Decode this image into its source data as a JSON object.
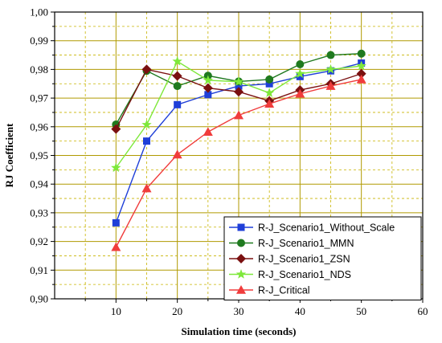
{
  "chart_data": {
    "type": "line",
    "title": "",
    "xlabel": "Simulation time (seconds)",
    "ylabel": "RJ Coefficient",
    "xlim": [
      0,
      60
    ],
    "ylim": [
      0.9,
      1.0
    ],
    "x_ticks": [
      10,
      20,
      30,
      40,
      50,
      60
    ],
    "x_tick_labels": [
      "10",
      "20",
      "30",
      "40",
      "50",
      "60"
    ],
    "y_ticks": [
      0.9,
      0.91,
      0.92,
      0.93,
      0.94,
      0.95,
      0.96,
      0.97,
      0.98,
      0.99,
      1.0
    ],
    "y_tick_labels": [
      "0,90",
      "0,91",
      "0,92",
      "0,93",
      "0,94",
      "0,95",
      "0,96",
      "0,97",
      "0,98",
      "0,99",
      "1,00"
    ],
    "grid": true,
    "legend_position": "bottom-right",
    "x": [
      10,
      15,
      20,
      25,
      30,
      35,
      40,
      45,
      50
    ],
    "series": [
      {
        "name": "R-J_Scenario1_Without_Scale",
        "color": "#1f3fd8",
        "marker": "square",
        "values": [
          0.9265,
          0.955,
          0.9677,
          0.9712,
          0.9742,
          0.975,
          0.9775,
          0.9795,
          0.9822
        ]
      },
      {
        "name": "R-J_Scenario1_MMN",
        "color": "#1f7a1f",
        "marker": "circle",
        "values": [
          0.9608,
          0.9795,
          0.9742,
          0.9778,
          0.9758,
          0.9765,
          0.9818,
          0.985,
          0.9855
        ]
      },
      {
        "name": "R-J_Scenario1_ZSN",
        "color": "#7a1010",
        "marker": "diamond",
        "values": [
          0.9592,
          0.98,
          0.9777,
          0.9735,
          0.9722,
          0.969,
          0.9728,
          0.975,
          0.9785
        ]
      },
      {
        "name": "R-J_Scenario1_NDS",
        "color": "#7ee83a",
        "marker": "star",
        "values": [
          0.9457,
          0.9607,
          0.9828,
          0.9762,
          0.9757,
          0.9718,
          0.9785,
          0.98,
          0.9812
        ]
      },
      {
        "name": "R-J_Critical",
        "color": "#f03c3c",
        "marker": "triangle",
        "values": [
          0.918,
          0.9385,
          0.9503,
          0.9582,
          0.964,
          0.968,
          0.9715,
          0.9742,
          0.9765
        ]
      }
    ]
  }
}
